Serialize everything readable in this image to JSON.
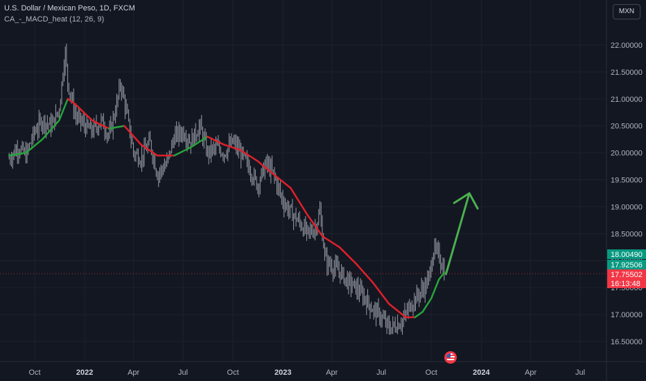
{
  "header": {
    "title": "U.S. Dollar / Mexican Peso, 1D, FXCM",
    "indicator": "CA_-_MACD_heat (12, 26, 9)",
    "currency_button": "MXN"
  },
  "colors": {
    "background": "#131722",
    "grid": "#1e222d",
    "candle": "#b2b5be",
    "ma_down": "#e0202a",
    "ma_up": "#27a43c",
    "arrow": "#4caf50",
    "label_green": "#089981",
    "label_red": "#f23645"
  },
  "chart_data": {
    "type": "line",
    "x_tick_labels": [
      "Oct",
      "2022",
      "Apr",
      "Jul",
      "Oct",
      "2023",
      "Apr",
      "Jul",
      "Oct",
      "2024",
      "Apr",
      "Jul"
    ],
    "y_tick_labels": [
      "16.50000",
      "17.00000",
      "17.50000",
      "18.00000",
      "18.50000",
      "19.00000",
      "19.50000",
      "20.00000",
      "20.50000",
      "21.00000",
      "21.50000",
      "22.00000"
    ],
    "ylim": [
      16.2,
      22.35
    ],
    "grid": true,
    "series": [
      {
        "x": [
          "2021-08-15",
          "2021-09-01",
          "2021-09-15",
          "2021-10-01",
          "2021-10-15",
          "2021-11-01",
          "2021-11-15",
          "2021-11-26",
          "2021-12-01",
          "2021-12-15",
          "2022-01-01",
          "2022-01-15",
          "2022-02-01",
          "2022-02-15",
          "2022-03-01",
          "2022-03-08",
          "2022-03-20",
          "2022-04-01",
          "2022-04-15",
          "2022-05-01",
          "2022-05-15",
          "2022-06-01",
          "2022-06-15",
          "2022-07-01",
          "2022-07-15",
          "2022-08-01",
          "2022-08-15",
          "2022-09-01",
          "2022-09-15",
          "2022-10-01",
          "2022-10-15",
          "2022-11-01",
          "2022-11-15",
          "2022-12-01",
          "2022-12-15",
          "2023-01-01",
          "2023-01-15",
          "2023-02-01",
          "2023-02-15",
          "2023-03-01",
          "2023-03-10",
          "2023-03-20",
          "2023-04-01",
          "2023-04-15",
          "2023-05-01",
          "2023-05-15",
          "2023-06-01",
          "2023-06-15",
          "2023-07-01",
          "2023-07-15",
          "2023-07-28",
          "2023-08-10",
          "2023-08-25",
          "2023-09-10",
          "2023-09-25",
          "2023-10-05",
          "2023-10-15",
          "2023-10-25"
        ],
        "values": [
          19.9,
          20.1,
          19.95,
          20.4,
          20.6,
          20.5,
          20.8,
          21.9,
          21.3,
          20.7,
          20.5,
          20.4,
          20.6,
          20.3,
          20.9,
          21.3,
          20.7,
          20.0,
          19.9,
          20.2,
          19.6,
          19.8,
          20.3,
          20.4,
          20.2,
          20.5,
          20.0,
          20.1,
          20.0,
          20.2,
          20.0,
          19.7,
          19.4,
          19.8,
          19.6,
          19.1,
          18.9,
          18.7,
          18.5,
          18.6,
          18.9,
          18.0,
          17.9,
          17.8,
          17.6,
          17.5,
          17.3,
          17.1,
          16.95,
          16.75,
          16.8,
          16.9,
          17.2,
          17.4,
          17.6,
          18.2,
          18.1,
          17.8
        ]
      },
      {
        "x": [
          "2021-08-15",
          "2021-09-15",
          "2021-10-15",
          "2021-11-15",
          "2021-12-01",
          "2021-12-15",
          "2022-01-15",
          "2022-02-15",
          "2022-03-15",
          "2022-04-15",
          "2022-05-15",
          "2022-06-15",
          "2022-07-15",
          "2022-08-15",
          "2022-09-15",
          "2022-10-15",
          "2022-11-15",
          "2022-12-15",
          "2023-01-15",
          "2023-02-15",
          "2023-03-15",
          "2023-04-15",
          "2023-05-15",
          "2023-06-15",
          "2023-07-15",
          "2023-08-15",
          "2023-09-01",
          "2023-09-15",
          "2023-10-01",
          "2023-10-15",
          "2023-10-25"
        ],
        "values": [
          19.95,
          20.0,
          20.25,
          20.6,
          21.0,
          20.9,
          20.6,
          20.45,
          20.5,
          20.15,
          19.95,
          19.95,
          20.1,
          20.3,
          20.15,
          20.05,
          19.85,
          19.6,
          19.35,
          18.85,
          18.45,
          18.25,
          17.95,
          17.6,
          17.2,
          16.95,
          16.95,
          17.05,
          17.3,
          17.65,
          17.78
        ]
      }
    ],
    "annotations": {
      "forecast_arrow": {
        "from": {
          "x": "2023-10-28",
          "y": 17.75
        },
        "to": {
          "x": "2023-12-10",
          "y": 19.25
        }
      },
      "price_labels": [
        {
          "value": "18.00490",
          "y": 18.0049,
          "color": "#089981"
        },
        {
          "value": "17.92506",
          "y": 17.92506,
          "color": "#089981"
        },
        {
          "value": "17.75502",
          "y": 17.75502,
          "color": "#f23645"
        },
        {
          "value": "16:13:48",
          "y": 17.6,
          "color": "#f23645"
        }
      ]
    }
  }
}
